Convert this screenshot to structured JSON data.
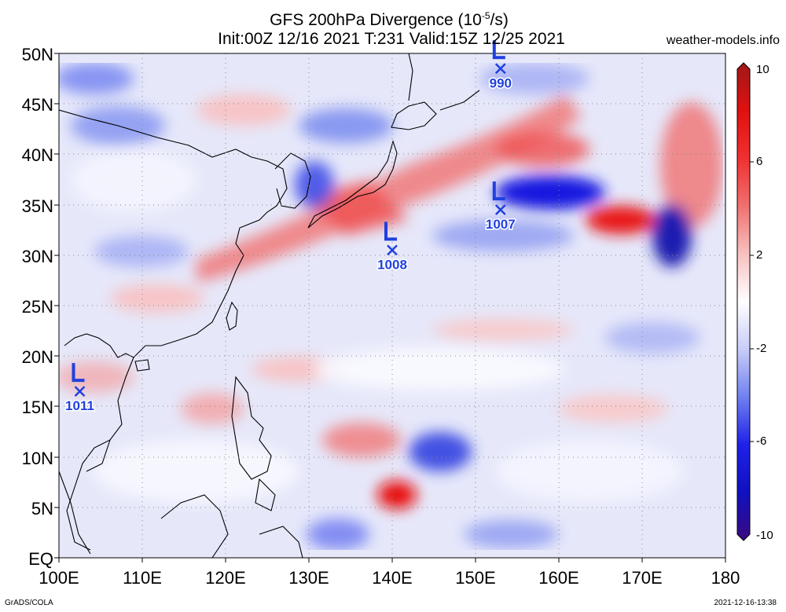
{
  "header": {
    "title_prefix": "GFS 200hPa Divergence (10",
    "title_exp": "-5",
    "title_suffix": "/s)",
    "subtitle": "Init:00Z 12/16 2021 T:231 Valid:15Z 12/25 2021",
    "site": "weather-models.info"
  },
  "footer": {
    "left": "GrADS/COLA",
    "right": "2021-12-16-13:38"
  },
  "axes": {
    "y_labels": [
      "50N",
      "45N",
      "40N",
      "35N",
      "30N",
      "25N",
      "20N",
      "15N",
      "10N",
      "5N",
      "EQ"
    ],
    "x_labels": [
      "100E",
      "110E",
      "120E",
      "130E",
      "140E",
      "150E",
      "160E",
      "170E",
      "180"
    ],
    "lon_range": [
      100,
      180
    ],
    "lat_range": [
      0,
      50
    ]
  },
  "colorbar": {
    "labels": [
      "10",
      "6",
      "2",
      "-2",
      "-6",
      "-10"
    ],
    "range": [
      -10,
      10
    ],
    "colors": [
      "#3a0a80",
      "#1010e0",
      "#6a7af0",
      "#c8d0fa",
      "#ffffff",
      "#f8c8c8",
      "#f06060",
      "#e81010",
      "#a01818"
    ]
  },
  "lows": [
    {
      "label": "990",
      "lon": 153,
      "lat": 48.5
    },
    {
      "label": "1007",
      "lon": 153,
      "lat": 34.5
    },
    {
      "label": "1008",
      "lon": 140,
      "lat": 30.5
    },
    {
      "label": "1011",
      "lon": 102.5,
      "lat": 16.5
    }
  ]
}
